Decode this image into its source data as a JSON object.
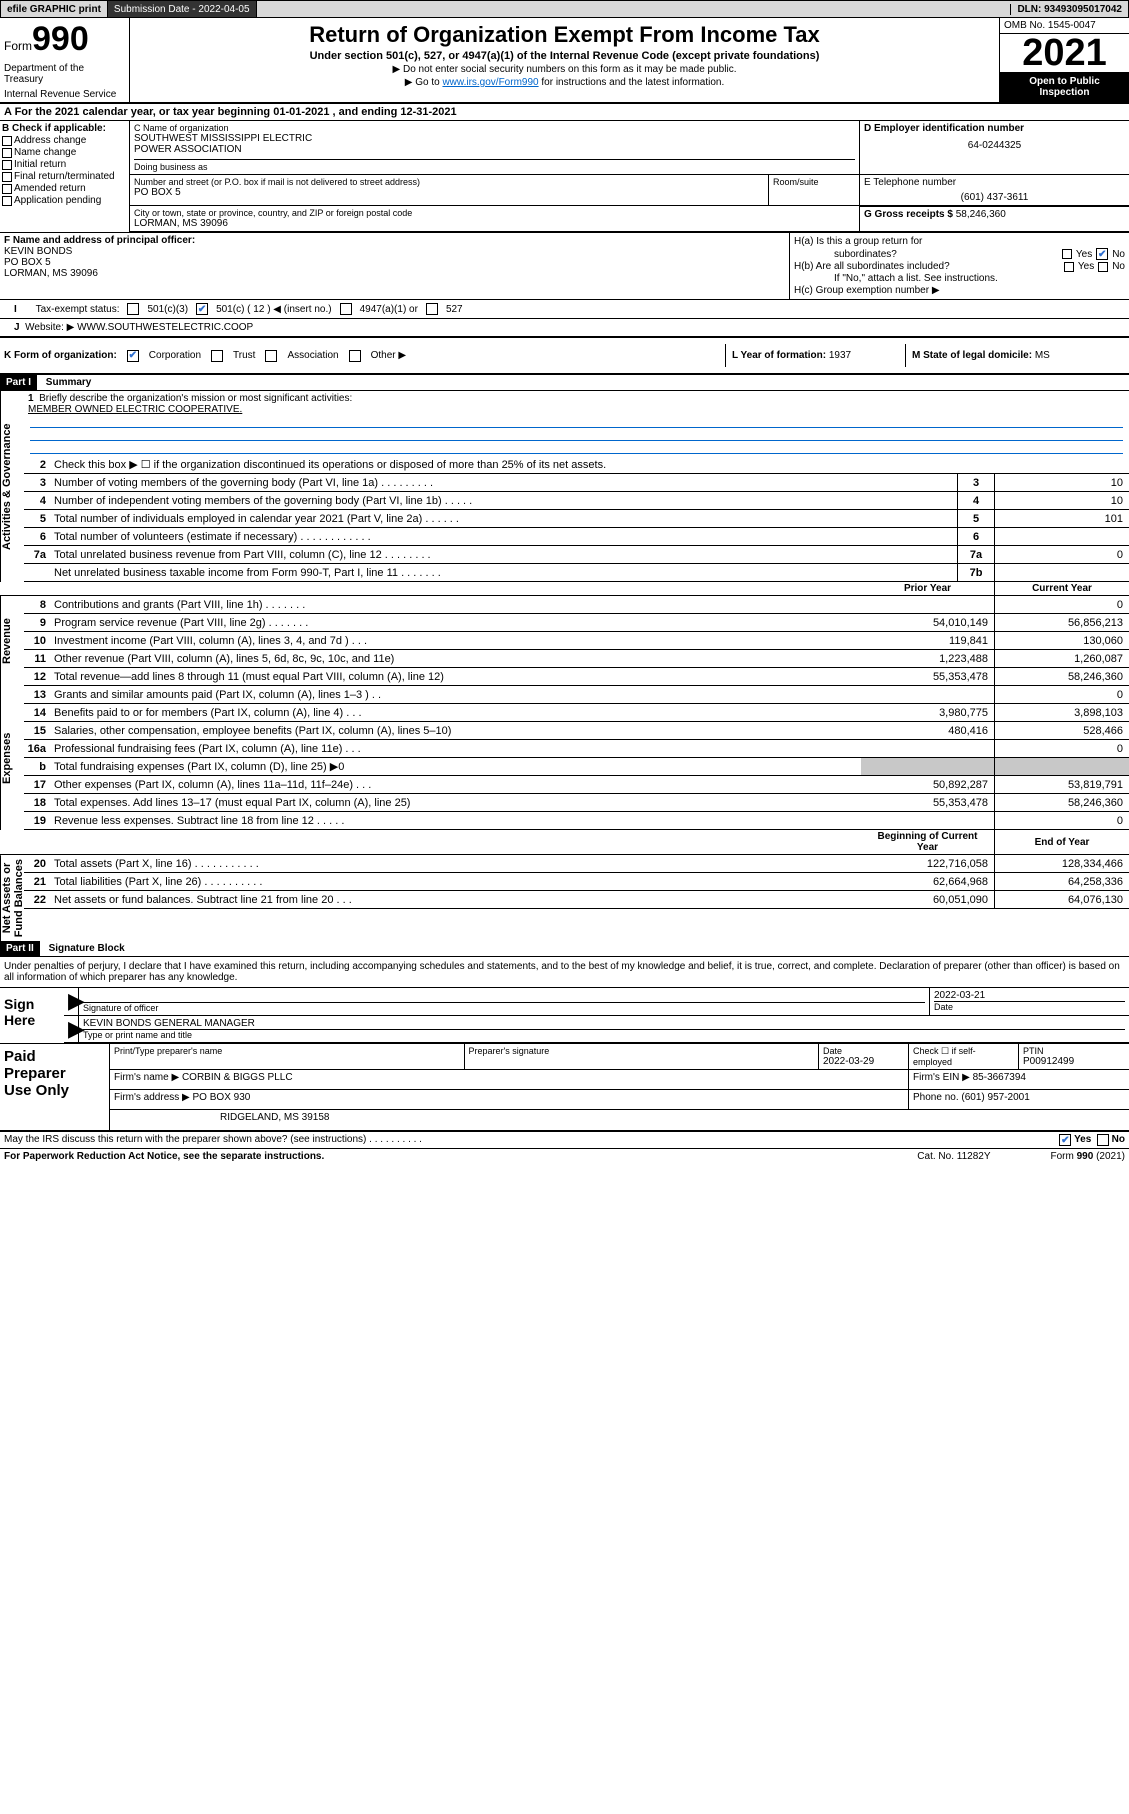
{
  "topbar": {
    "efile": "efile GRAPHIC print",
    "submission_label": "Submission Date",
    "submission_date": "2022-04-05",
    "dln_label": "DLN:",
    "dln": "93493095017042"
  },
  "header": {
    "form_word": "Form",
    "form_no": "990",
    "dept": "Department of the Treasury",
    "irs": "Internal Revenue Service",
    "title": "Return of Organization Exempt From Income Tax",
    "subtitle": "Under section 501(c), 527, or 4947(a)(1) of the Internal Revenue Code (except private foundations)",
    "note1": "▶ Do not enter social security numbers on this form as it may be made public.",
    "note2_pre": "▶ Go to ",
    "note2_link": "www.irs.gov/Form990",
    "note2_post": " for instructions and the latest information.",
    "omb": "OMB No. 1545-0047",
    "year": "2021",
    "open1": "Open to Public",
    "open2": "Inspection"
  },
  "sectionA": {
    "label": "A  For the 2021 calendar year, or tax year beginning ",
    "begin": "01-01-2021",
    "mid": " , and ending ",
    "end": "12-31-2021"
  },
  "sectionB": {
    "title": "B Check if applicable:",
    "opts": [
      "Address change",
      "Name change",
      "Initial return",
      "Final return/terminated",
      "Amended return",
      "Application pending"
    ]
  },
  "sectionC": {
    "name_lbl": "C Name of organization",
    "name1": "SOUTHWEST MISSISSIPPI ELECTRIC",
    "name2": "POWER ASSOCIATION",
    "dba_lbl": "Doing business as",
    "street_lbl": "Number and street (or P.O. box if mail is not delivered to street address)",
    "street": "PO BOX 5",
    "room_lbl": "Room/suite",
    "city_lbl": "City or town, state or province, country, and ZIP or foreign postal code",
    "city": "LORMAN, MS  39096"
  },
  "sectionD": {
    "lbl": "D Employer identification number",
    "val": "64-0244325"
  },
  "sectionE": {
    "lbl": "E Telephone number",
    "val": "(601) 437-3611"
  },
  "sectionG": {
    "lbl": "G Gross receipts $",
    "val": "58,246,360"
  },
  "sectionF": {
    "lbl": "F Name and address of principal officer:",
    "name": "KEVIN BONDS",
    "addr1": "PO BOX 5",
    "addr2": "LORMAN, MS  39096"
  },
  "sectionH": {
    "a": "H(a)  Is this a group return for",
    "a2": "subordinates?",
    "b": "H(b)  Are all subordinates included?",
    "bnote": "If \"No,\" attach a list. See instructions.",
    "c": "H(c)  Group exemption number ▶",
    "yes": "Yes",
    "no": "No"
  },
  "sectionI": {
    "lbl": "Tax-exempt status:",
    "o1": "501(c)(3)",
    "o2": "501(c) ( 12 ) ◀ (insert no.)",
    "o3": "4947(a)(1) or",
    "o4": "527"
  },
  "sectionJ": {
    "lbl": "Website: ▶",
    "val": "WWW.SOUTHWESTELECTRIC.COOP"
  },
  "sectionK": {
    "lbl": "K Form of organization:",
    "o1": "Corporation",
    "o2": "Trust",
    "o3": "Association",
    "o4": "Other ▶"
  },
  "sectionL": {
    "lbl": "L Year of formation:",
    "val": "1937"
  },
  "sectionM": {
    "lbl": "M State of legal domicile:",
    "val": "MS"
  },
  "part1": {
    "hdr": "Part I",
    "title": "Summary",
    "q1": "Briefly describe the organization's mission or most significant activities:",
    "mission": "MEMBER OWNED ELECTRIC COOPERATIVE.",
    "q2": "Check this box ▶ ☐  if the organization discontinued its operations or disposed of more than 25% of its net assets.",
    "gov_lbl": "Activities & Governance",
    "rev_lbl": "Revenue",
    "exp_lbl": "Expenses",
    "na_lbl": "Net Assets or\nFund Balances",
    "rows_gov": [
      {
        "n": "3",
        "t": "Number of voting members of the governing body (Part VI, line 1a)  .      .      .      .      .      .      .      .      .",
        "r": "3",
        "v": "10"
      },
      {
        "n": "4",
        "t": "Number of independent voting members of the governing body (Part VI, line 1b)    .      .      .      .      .",
        "r": "4",
        "v": "10"
      },
      {
        "n": "5",
        "t": "Total number of individuals employed in calendar year 2021 (Part V, line 2a)    .      .      .      .      .      .",
        "r": "5",
        "v": "101"
      },
      {
        "n": "6",
        "t": "Total number of volunteers (estimate if necessary)    .      .      .      .      .      .      .      .      .      .      .      .",
        "r": "6",
        "v": ""
      },
      {
        "n": "7a",
        "t": "Total unrelated business revenue from Part VIII, column (C), line 12    .      .      .      .      .      .      .      .",
        "r": "7a",
        "v": "0"
      },
      {
        "n": "",
        "t": "Net unrelated business taxable income from Form 990-T, Part I, line 11    .      .      .      .      .      .      .",
        "r": "7b",
        "v": ""
      }
    ],
    "col_hdr_prior": "Prior Year",
    "col_hdr_curr": "Current Year",
    "col_hdr_boy": "Beginning of Current Year",
    "col_hdr_eoy": "End of Year",
    "rows_rev": [
      {
        "n": "8",
        "t": "Contributions and grants (Part VIII, line 1h)    .      .      .      .      .      .      .",
        "p": "",
        "c": "0"
      },
      {
        "n": "9",
        "t": "Program service revenue (Part VIII, line 2g)    .      .      .      .      .      .      .",
        "p": "54,010,149",
        "c": "56,856,213"
      },
      {
        "n": "10",
        "t": "Investment income (Part VIII, column (A), lines 3, 4, and 7d )    .      .      .",
        "p": "119,841",
        "c": "130,060"
      },
      {
        "n": "11",
        "t": "Other revenue (Part VIII, column (A), lines 5, 6d, 8c, 9c, 10c, and 11e)",
        "p": "1,223,488",
        "c": "1,260,087"
      },
      {
        "n": "12",
        "t": "Total revenue—add lines 8 through 11 (must equal Part VIII, column (A), line 12)",
        "p": "55,353,478",
        "c": "58,246,360"
      }
    ],
    "rows_exp": [
      {
        "n": "13",
        "t": "Grants and similar amounts paid (Part IX, column (A), lines 1–3 )    .      .",
        "p": "",
        "c": "0"
      },
      {
        "n": "14",
        "t": "Benefits paid to or for members (Part IX, column (A), line 4)    .      .      .",
        "p": "3,980,775",
        "c": "3,898,103"
      },
      {
        "n": "15",
        "t": "Salaries, other compensation, employee benefits (Part IX, column (A), lines 5–10)",
        "p": "480,416",
        "c": "528,466"
      },
      {
        "n": "16a",
        "t": "Professional fundraising fees (Part IX, column (A), line 11e)    .      .      .",
        "p": "",
        "c": "0"
      },
      {
        "n": "b",
        "t": "Total fundraising expenses (Part IX, column (D), line 25) ▶0",
        "p": "shade",
        "c": "shade"
      },
      {
        "n": "17",
        "t": "Other expenses (Part IX, column (A), lines 11a–11d, 11f–24e)    .      .      .",
        "p": "50,892,287",
        "c": "53,819,791"
      },
      {
        "n": "18",
        "t": "Total expenses. Add lines 13–17 (must equal Part IX, column (A), line 25)",
        "p": "55,353,478",
        "c": "58,246,360"
      },
      {
        "n": "19",
        "t": "Revenue less expenses. Subtract line 18 from line 12    .      .      .      .      .",
        "p": "",
        "c": "0"
      }
    ],
    "rows_na": [
      {
        "n": "20",
        "t": "Total assets (Part X, line 16)    .      .      .      .      .      .      .      .      .      .      .",
        "p": "122,716,058",
        "c": "128,334,466"
      },
      {
        "n": "21",
        "t": "Total liabilities (Part X, line 26)    .      .      .      .      .      .      .      .      .      .",
        "p": "62,664,968",
        "c": "64,258,336"
      },
      {
        "n": "22",
        "t": "Net assets or fund balances. Subtract line 21 from line 20    .      .      .",
        "p": "60,051,090",
        "c": "64,076,130"
      }
    ]
  },
  "part2": {
    "hdr": "Part II",
    "title": "Signature Block",
    "note": "Under penalties of perjury, I declare that I have examined this return, including accompanying schedules and statements, and to the best of my knowledge and belief, it is true, correct, and complete. Declaration of preparer (other than officer) is based on all information of which preparer has any knowledge.",
    "sign_here": "Sign\nHere",
    "sig_officer_lbl": "Signature of officer",
    "date_lbl": "Date",
    "sig_date": "2022-03-21",
    "officer_name": "KEVIN BONDS  GENERAL MANAGER",
    "officer_sub": "Type or print name and title",
    "pp_lbl": "Paid\nPreparer\nUse Only",
    "pp_name_lbl": "Print/Type preparer's name",
    "pp_sig_lbl": "Preparer's signature",
    "pp_date_lbl": "Date",
    "pp_date": "2022-03-29",
    "pp_check_lbl": "Check ☐ if self-employed",
    "pp_ptin_lbl": "PTIN",
    "pp_ptin": "P00912499",
    "firm_name_lbl": "Firm's name    ▶",
    "firm_name": "CORBIN & BIGGS PLLC",
    "firm_ein_lbl": "Firm's EIN ▶",
    "firm_ein": "85-3667394",
    "firm_addr_lbl": "Firm's address ▶",
    "firm_addr1": "PO BOX 930",
    "firm_addr2": "RIDGELAND, MS  39158",
    "phone_lbl": "Phone no.",
    "phone": "(601) 957-2001",
    "discuss": "May the IRS discuss this return with the preparer shown above? (see instructions)    .      .      .      .      .      .      .      .      .      .",
    "yes": "Yes",
    "no": "No"
  },
  "footer": {
    "paperwork": "For Paperwork Reduction Act Notice, see the separate instructions.",
    "cat": "Cat. No. 11282Y",
    "form": "Form 990 (2021)"
  }
}
